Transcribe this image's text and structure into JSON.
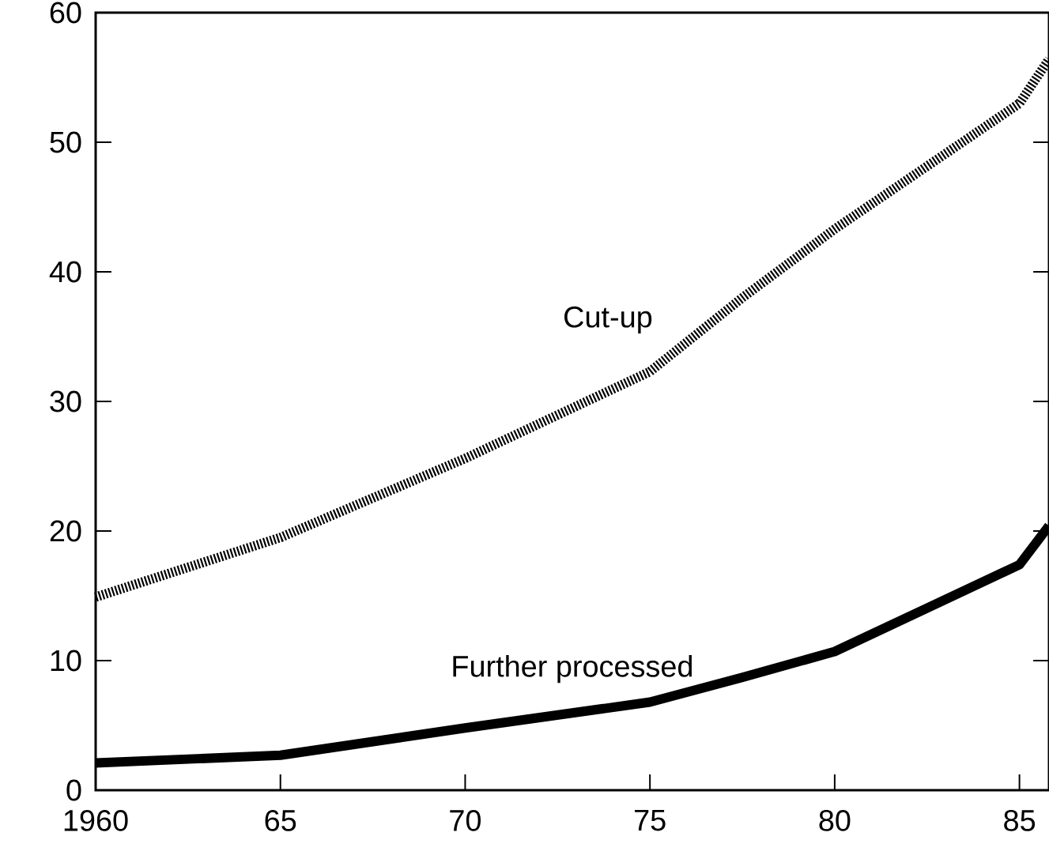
{
  "chart_data": {
    "type": "line",
    "x": [
      1960,
      1965,
      1970,
      1975,
      1977.5,
      1980,
      1985,
      1985.8
    ],
    "series": [
      {
        "name": "Cut-up",
        "color": "#000000",
        "line_style": "dotted",
        "values": [
          14.9,
          19.5,
          25.6,
          32.3,
          38,
          43.3,
          53,
          56.4
        ]
      },
      {
        "name": "Further processed",
        "color": "#000000",
        "line_style": "solid",
        "values": [
          2.1,
          2.7,
          4.8,
          6.8,
          8.7,
          10.7,
          17.4,
          20.4
        ]
      }
    ],
    "xlim": [
      1960,
      1985.8
    ],
    "ylim": [
      0,
      60
    ],
    "xticks": [
      1960,
      {
        "value": 1965,
        "label": "65"
      },
      {
        "value": 1970,
        "label": "70"
      },
      {
        "value": 1975,
        "label": "75"
      },
      {
        "value": 1980,
        "label": "80"
      },
      {
        "value": 1985,
        "label": "85"
      }
    ],
    "yticks": [
      0,
      10,
      20,
      30,
      40,
      50,
      60
    ],
    "grid": false
  }
}
